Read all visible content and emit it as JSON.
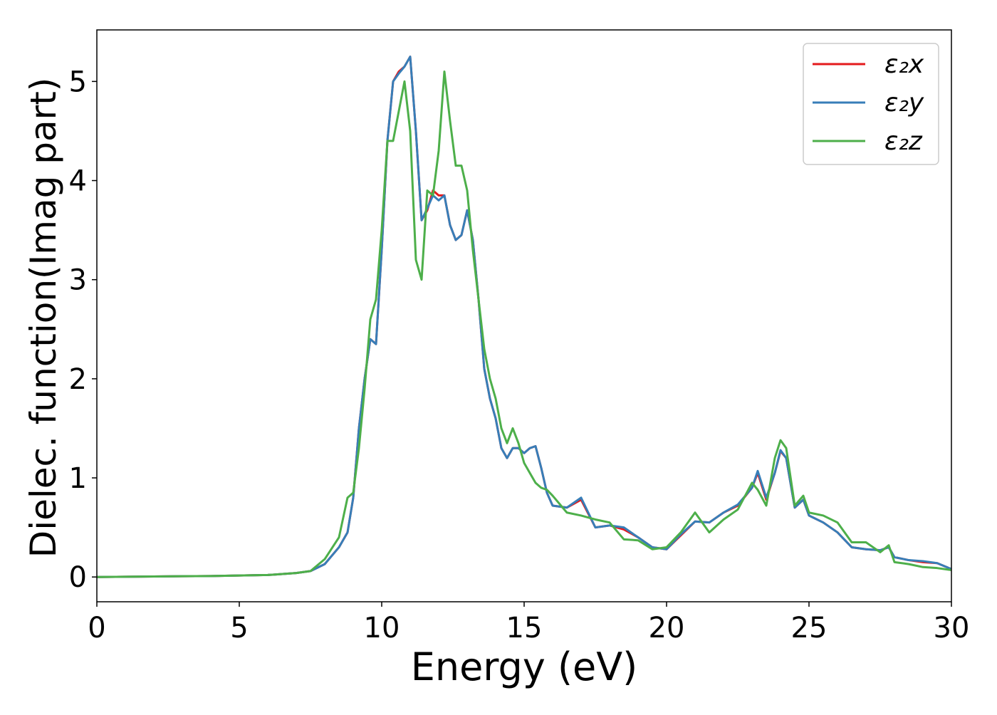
{
  "chart_data": {
    "type": "line",
    "xlabel": "Energy (eV)",
    "ylabel": "Dielec. function(Imag part)",
    "x": [
      0,
      2,
      4,
      6,
      7,
      7.5,
      8,
      8.5,
      8.8,
      9,
      9.2,
      9.4,
      9.6,
      9.8,
      10,
      10.2,
      10.4,
      10.6,
      10.8,
      11,
      11.2,
      11.4,
      11.6,
      11.8,
      12,
      12.2,
      12.4,
      12.6,
      12.8,
      13,
      13.2,
      13.4,
      13.6,
      13.8,
      14,
      14.2,
      14.4,
      14.6,
      14.8,
      15,
      15.2,
      15.4,
      15.6,
      15.8,
      16,
      16.5,
      17,
      17.5,
      18,
      18.5,
      19,
      19.5,
      20,
      20.5,
      21,
      21.5,
      22,
      22.5,
      23,
      23.2,
      23.5,
      23.8,
      24,
      24.2,
      24.5,
      24.8,
      25,
      25.5,
      26,
      26.5,
      27,
      27.5,
      27.8,
      28,
      28.5,
      29,
      29.5,
      30
    ],
    "series": [
      {
        "name": "ε₂x",
        "color": "#e41a1c",
        "values": [
          0,
          0.005,
          0.01,
          0.02,
          0.04,
          0.06,
          0.13,
          0.3,
          0.45,
          0.8,
          1.5,
          2.0,
          2.4,
          2.35,
          3.3,
          4.4,
          5.0,
          5.1,
          5.15,
          5.25,
          4.5,
          3.6,
          3.7,
          3.9,
          3.85,
          3.85,
          3.55,
          3.4,
          3.45,
          3.7,
          3.4,
          2.8,
          2.1,
          1.8,
          1.6,
          1.3,
          1.2,
          1.3,
          1.3,
          1.25,
          1.3,
          1.32,
          1.1,
          0.85,
          0.72,
          0.7,
          0.78,
          0.5,
          0.52,
          0.48,
          0.4,
          0.3,
          0.28,
          0.42,
          0.56,
          0.55,
          0.65,
          0.72,
          0.9,
          1.05,
          0.78,
          1.05,
          1.27,
          1.2,
          0.7,
          0.78,
          0.62,
          0.55,
          0.45,
          0.3,
          0.28,
          0.27,
          0.3,
          0.2,
          0.17,
          0.15,
          0.14,
          0.08
        ]
      },
      {
        "name": "ε₂y",
        "color": "#377eb8",
        "values": [
          0,
          0.005,
          0.01,
          0.02,
          0.04,
          0.06,
          0.13,
          0.3,
          0.45,
          0.8,
          1.5,
          2.0,
          2.4,
          2.35,
          3.3,
          4.4,
          5.0,
          5.08,
          5.15,
          5.25,
          4.5,
          3.6,
          3.72,
          3.85,
          3.8,
          3.85,
          3.55,
          3.4,
          3.45,
          3.7,
          3.4,
          2.8,
          2.1,
          1.8,
          1.6,
          1.3,
          1.2,
          1.3,
          1.3,
          1.25,
          1.3,
          1.32,
          1.1,
          0.85,
          0.72,
          0.7,
          0.8,
          0.5,
          0.52,
          0.5,
          0.4,
          0.3,
          0.28,
          0.43,
          0.56,
          0.55,
          0.65,
          0.73,
          0.9,
          1.07,
          0.8,
          1.05,
          1.28,
          1.2,
          0.7,
          0.78,
          0.62,
          0.55,
          0.45,
          0.3,
          0.28,
          0.27,
          0.3,
          0.2,
          0.17,
          0.16,
          0.14,
          0.08
        ]
      },
      {
        "name": "ε₂z",
        "color": "#4daf4a",
        "values": [
          0,
          0.005,
          0.01,
          0.02,
          0.04,
          0.06,
          0.18,
          0.4,
          0.8,
          0.85,
          1.3,
          1.9,
          2.6,
          2.8,
          3.5,
          4.4,
          4.4,
          4.7,
          5.0,
          4.5,
          3.2,
          3.0,
          3.9,
          3.85,
          4.3,
          5.1,
          4.6,
          4.15,
          4.15,
          3.9,
          3.3,
          2.8,
          2.3,
          2.0,
          1.8,
          1.5,
          1.35,
          1.5,
          1.35,
          1.15,
          1.05,
          0.95,
          0.9,
          0.88,
          0.82,
          0.65,
          0.62,
          0.58,
          0.55,
          0.38,
          0.37,
          0.28,
          0.3,
          0.45,
          0.65,
          0.45,
          0.58,
          0.68,
          0.95,
          0.88,
          0.72,
          1.2,
          1.38,
          1.3,
          0.72,
          0.82,
          0.65,
          0.62,
          0.55,
          0.35,
          0.35,
          0.25,
          0.32,
          0.15,
          0.13,
          0.1,
          0.09,
          0.07
        ]
      }
    ],
    "xlim": [
      0,
      30
    ],
    "xticks": [
      0,
      5,
      10,
      15,
      20,
      25,
      30
    ],
    "ylim": [
      -0.25,
      5.52
    ],
    "yticks": [
      0,
      1,
      2,
      3,
      4,
      5
    ],
    "legend": "upper right"
  }
}
